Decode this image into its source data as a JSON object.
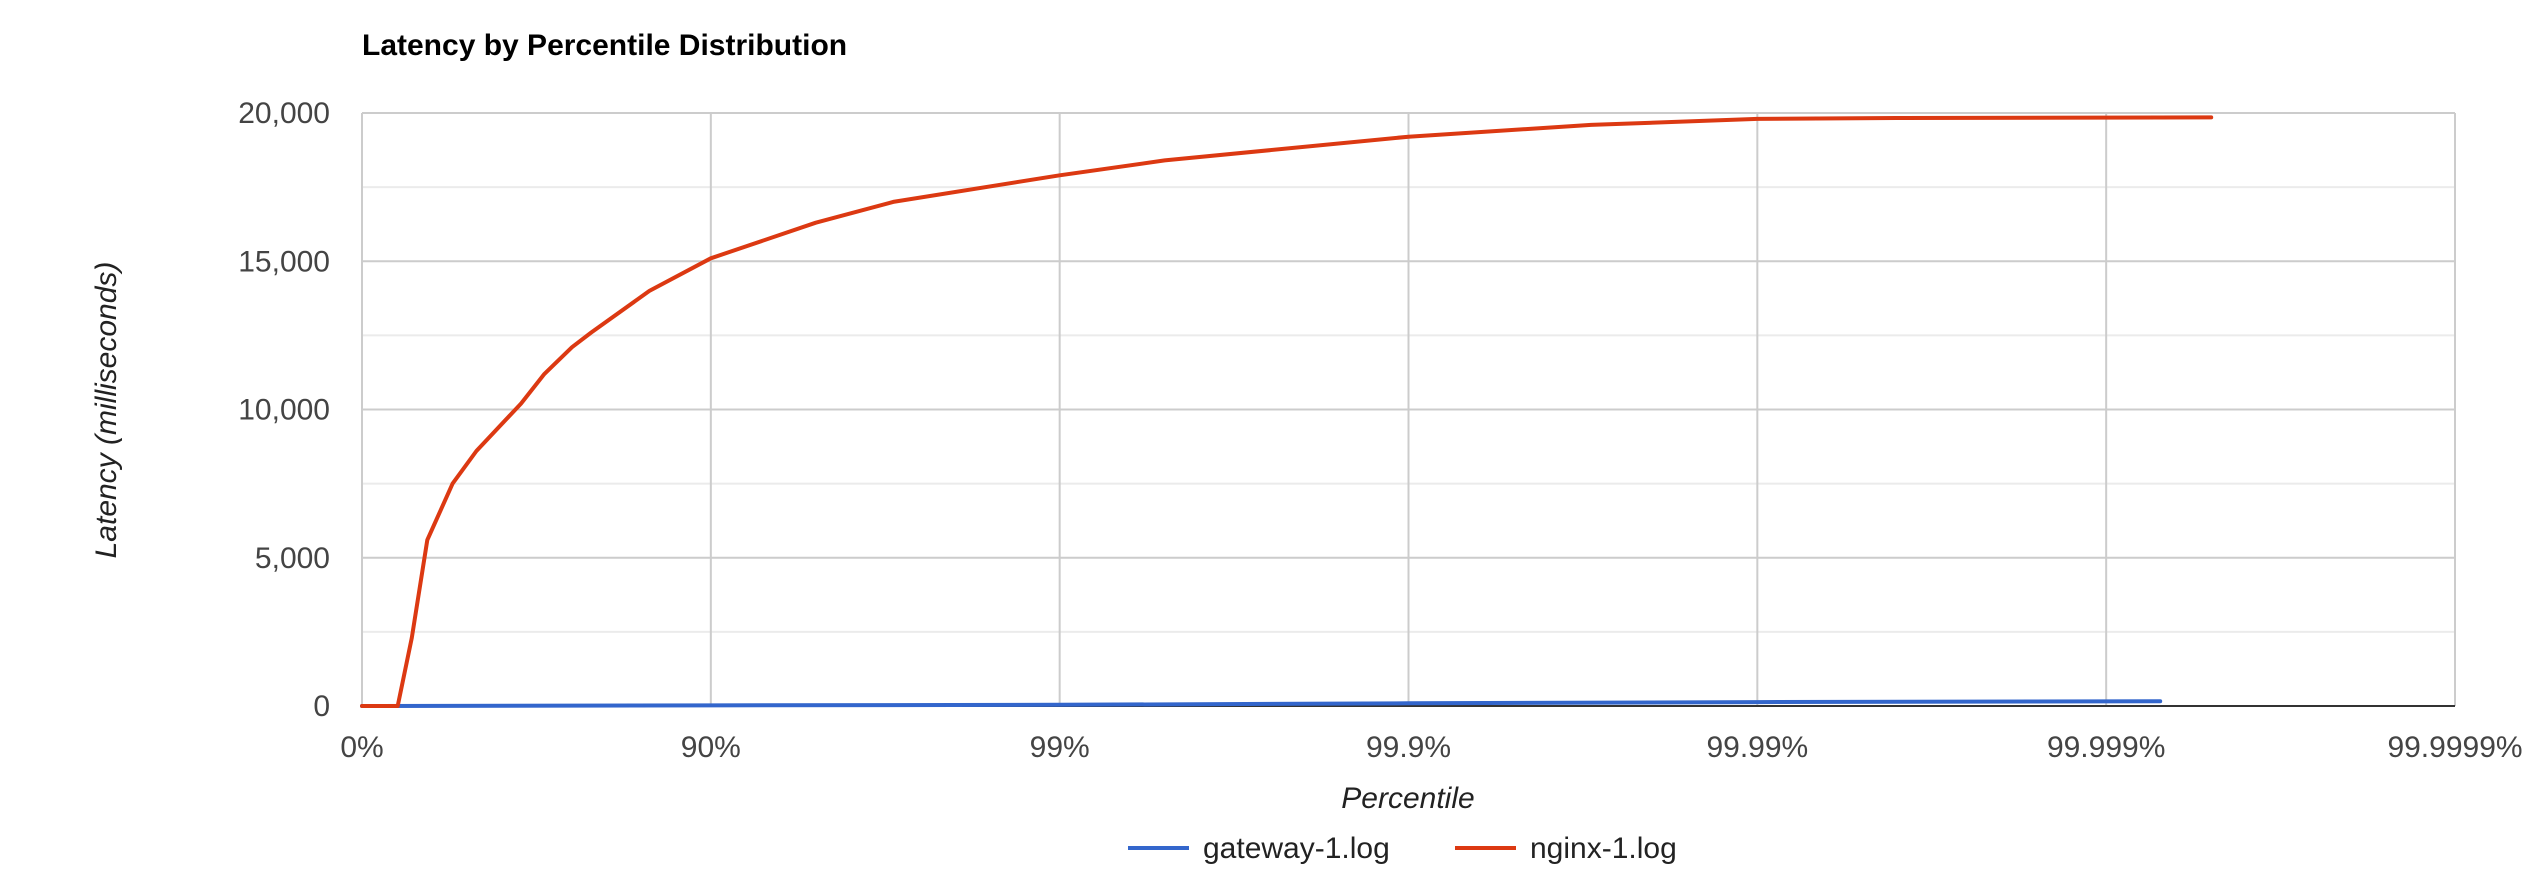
{
  "chart_data": {
    "type": "line",
    "title": "Latency by Percentile Distribution",
    "xlabel": "Percentile",
    "ylabel": "Latency (milliseconds)",
    "x_scale": "log of 1/(1-percentile)",
    "x_ticks": [
      "0%",
      "90%",
      "99%",
      "99.9%",
      "99.99%",
      "99.999%",
      "99.9999%"
    ],
    "y_ticks": [
      "0",
      "5,000",
      "10,000",
      "15,000",
      "20,000"
    ],
    "ylim": [
      0,
      20000
    ],
    "grid": true,
    "legend_position": "bottom",
    "series": [
      {
        "name": "gateway-1.log",
        "color": "#3366cc",
        "points": [
          {
            "x": "0%",
            "y": 0
          },
          {
            "x": "90%",
            "y": 20
          },
          {
            "x": "99%",
            "y": 40
          },
          {
            "x": "99.9%",
            "y": 90
          },
          {
            "x": "99.99%",
            "y": 130
          },
          {
            "x": "99.9993%",
            "y": 160
          }
        ]
      },
      {
        "name": "nginx-1.log",
        "color": "#dc3912",
        "points": [
          {
            "x": "0%",
            "y": 0
          },
          {
            "x": "21%",
            "y": 0
          },
          {
            "x": "28%",
            "y": 2300
          },
          {
            "x": "35%",
            "y": 5600
          },
          {
            "x": "45%",
            "y": 7500
          },
          {
            "x": "53%",
            "y": 8600
          },
          {
            "x": "65%",
            "y": 10200
          },
          {
            "x": "70%",
            "y": 11200
          },
          {
            "x": "75%",
            "y": 12100
          },
          {
            "x": "78%",
            "y": 12600
          },
          {
            "x": "85%",
            "y": 14000
          },
          {
            "x": "90%",
            "y": 15100
          },
          {
            "x": "95%",
            "y": 16300
          },
          {
            "x": "97%",
            "y": 17000
          },
          {
            "x": "99%",
            "y": 17900
          },
          {
            "x": "99.5%",
            "y": 18400
          },
          {
            "x": "99.9%",
            "y": 19200
          },
          {
            "x": "99.97%",
            "y": 19600
          },
          {
            "x": "99.99%",
            "y": 19800
          },
          {
            "x": "99.996%",
            "y": 19830
          },
          {
            "x": "99.9995%",
            "y": 19850
          }
        ]
      }
    ]
  }
}
